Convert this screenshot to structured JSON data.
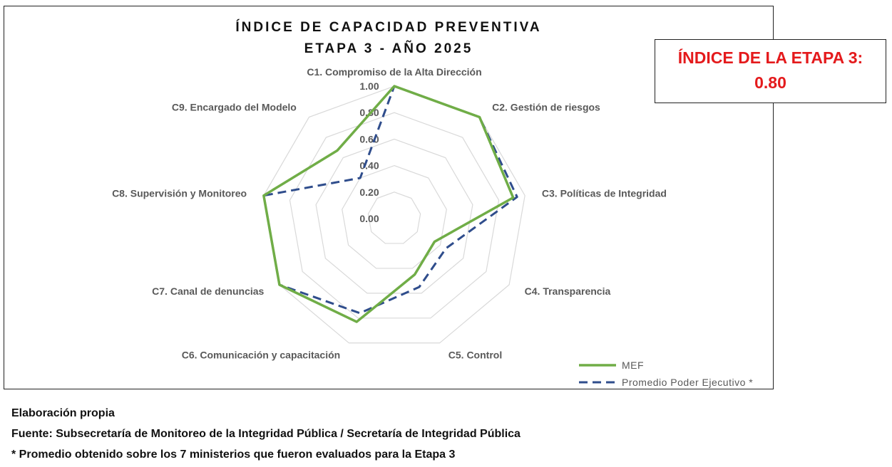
{
  "chart_data": {
    "type": "radar",
    "title": "ÍNDICE DE CAPACIDAD PREVENTIVA",
    "subtitle": "ETAPA 3  - AÑO 2025",
    "categories": [
      "C1. Compromiso de la Alta Dirección",
      "C2. Gestión de riesgos",
      "C3.  Políticas de Integridad",
      "C4. Transparencia",
      "C5. Control",
      "C6. Comunicación y capacitación",
      "C7. Canal de denuncias",
      "C8. Supervisión y Monitoreo",
      "C9. Encargado del Modelo"
    ],
    "rlim": [
      0,
      1
    ],
    "ticks": [
      "0.00",
      "0.20",
      "0.40",
      "0.60",
      "0.80",
      "1.00"
    ],
    "grid": true,
    "legend_position": "bottom-right",
    "series": [
      {
        "name": "MEF",
        "color": "#70ad47",
        "style": "solid",
        "values": [
          1.0,
          1.0,
          0.91,
          0.35,
          0.45,
          0.83,
          1.0,
          1.0,
          0.67
        ]
      },
      {
        "name": "Promedio Poder Ejecutivo *",
        "color": "#2f4d8c",
        "style": "dashed",
        "values": [
          1.0,
          1.0,
          0.94,
          0.45,
          0.55,
          0.76,
          1.0,
          1.0,
          0.4
        ]
      }
    ]
  },
  "index_box": {
    "label": "ÍNDICE DE LA ETAPA 3:",
    "value": "0.80"
  },
  "notes": {
    "line1": "Elaboración propia",
    "line2": "Fuente: Subsecretaría de Monitoreo de la Integridad Pública / Secretaría de Integridad Pública",
    "line3": "* Promedio obtenido sobre los 7 ministerios que fueron evaluados para la Etapa 3"
  }
}
